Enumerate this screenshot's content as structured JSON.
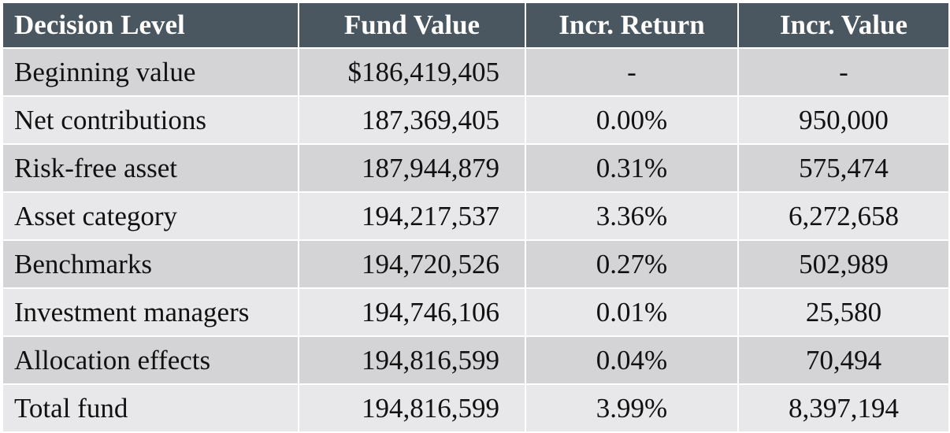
{
  "headers": [
    "Decision Level",
    "Fund Value",
    "Incr. Return",
    "Incr. Value"
  ],
  "rows": [
    {
      "level": "Beginning value",
      "fund_value": "$186,419,405",
      "incr_return": "-",
      "incr_value": "-"
    },
    {
      "level": "Net contributions",
      "fund_value": "187,369,405",
      "incr_return": "0.00%",
      "incr_value": "950,000"
    },
    {
      "level": "Risk-free asset",
      "fund_value": "187,944,879",
      "incr_return": "0.31%",
      "incr_value": "575,474"
    },
    {
      "level": "Asset category",
      "fund_value": "194,217,537",
      "incr_return": "3.36%",
      "incr_value": "6,272,658"
    },
    {
      "level": "Benchmarks",
      "fund_value": "194,720,526",
      "incr_return": "0.27%",
      "incr_value": "502,989"
    },
    {
      "level": "Investment managers",
      "fund_value": "194,746,106",
      "incr_return": "0.01%",
      "incr_value": "25,580"
    },
    {
      "level": "Allocation effects",
      "fund_value": "194,816,599",
      "incr_return": "0.04%",
      "incr_value": "70,494"
    },
    {
      "level": "Total fund",
      "fund_value": "194,816,599",
      "incr_return": "3.99%",
      "incr_value": "8,397,194"
    }
  ],
  "colors": {
    "header_bg": "#4a5761",
    "header_text": "#ffffff",
    "row_dark": "#d4d4d6",
    "row_light": "#e8e8ea"
  }
}
